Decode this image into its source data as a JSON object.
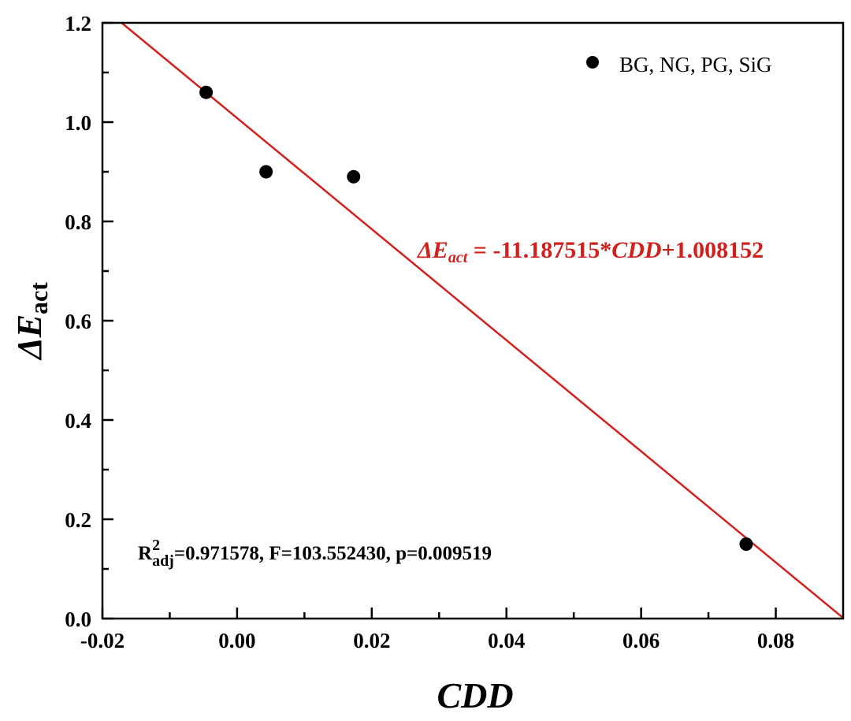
{
  "chart_data": {
    "type": "scatter",
    "xlabel": "CDD",
    "ylabel_main": "ΔE",
    "ylabel_sub": "act",
    "xlim": [
      -0.02,
      0.09
    ],
    "ylim": [
      0.0,
      1.2
    ],
    "xticks": [
      "-0.02",
      "0.00",
      "0.02",
      "0.04",
      "0.06",
      "0.08"
    ],
    "xtick_values": [
      -0.02,
      0.0,
      0.02,
      0.04,
      0.06,
      0.08
    ],
    "yticks": [
      "0.0",
      "0.2",
      "0.4",
      "0.6",
      "0.8",
      "1.0",
      "1.2"
    ],
    "ytick_values": [
      0.0,
      0.2,
      0.4,
      0.6,
      0.8,
      1.0,
      1.2
    ],
    "grid": false,
    "legend": {
      "label": "BG, NG, PG, SiG",
      "placement": "top-right"
    },
    "series": [
      {
        "name": "BG, NG, PG, SiG",
        "x": [
          -0.0046,
          0.0043,
          0.0173,
          0.0756
        ],
        "y": [
          1.06,
          0.9,
          0.89,
          0.15
        ],
        "color": "#000000"
      }
    ],
    "fit": {
      "slope": -11.187515,
      "intercept": 1.008152,
      "color": "#d0211c"
    },
    "equation": {
      "lhs_main": "ΔE",
      "lhs_sub": "act",
      "mid": " = -11.187515*",
      "var": "CDD",
      "rhs": "+1.008152"
    },
    "stats": {
      "r": "R",
      "sup": "2",
      "sub": "adj",
      "rest": "=0.971578, F=103.552430, p=0.009519"
    }
  }
}
